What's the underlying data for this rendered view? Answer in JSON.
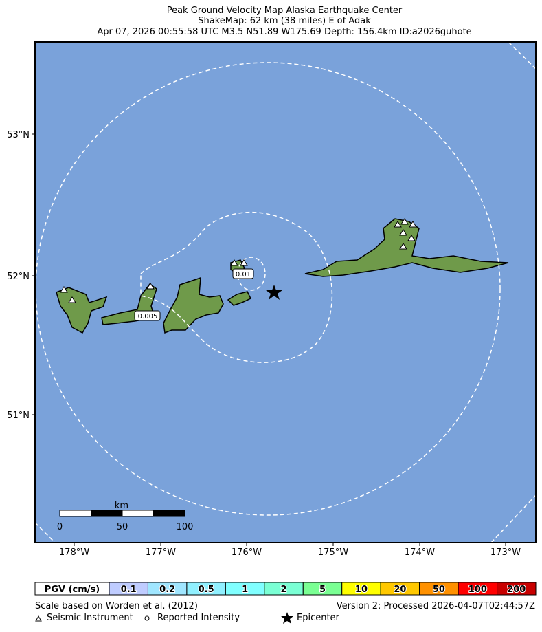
{
  "header": {
    "title": "Peak Ground Velocity Map Alaska Earthquake Center",
    "subtitle": "ShakeMap: 62 km (38 miles) E of Adak",
    "event": "Apr 07, 2026 00:55:58 UTC M3.5 N51.89 W175.69 Depth: 156.4km ID:a2026guhote"
  },
  "map": {
    "lat_labels": [
      "53°N",
      "52°N",
      "51°N"
    ],
    "lon_labels": [
      "178°W",
      "177°W",
      "176°W",
      "175°W",
      "174°W",
      "173°W"
    ],
    "contour_labels": [
      "0.01",
      "0.005"
    ],
    "scale_bar": {
      "unit": "km",
      "labels": [
        "0",
        "50",
        "100"
      ]
    }
  },
  "legend": {
    "title": "PGV (cm/s)",
    "items": [
      {
        "label": "0.1",
        "color": "#bfccff"
      },
      {
        "label": "0.2",
        "color": "#a0e6ff"
      },
      {
        "label": "0.5",
        "color": "#90f0ff"
      },
      {
        "label": "1",
        "color": "#80ffff"
      },
      {
        "label": "2",
        "color": "#7affd4"
      },
      {
        "label": "5",
        "color": "#7aff93"
      },
      {
        "label": "10",
        "color": "#ffff00"
      },
      {
        "label": "20",
        "color": "#ffc800"
      },
      {
        "label": "50",
        "color": "#ff9100"
      },
      {
        "label": "100",
        "color": "#ff0000"
      },
      {
        "label": "200",
        "color": "#c80000"
      }
    ]
  },
  "footer": {
    "reference": "Scale based on Worden et al. (2012)",
    "version": "Version 2: Processed 2026-04-07T02:44:57Z",
    "instrument": "Seismic Instrument",
    "intensity": "Reported Intensity",
    "epicenter": "Epicenter"
  }
}
